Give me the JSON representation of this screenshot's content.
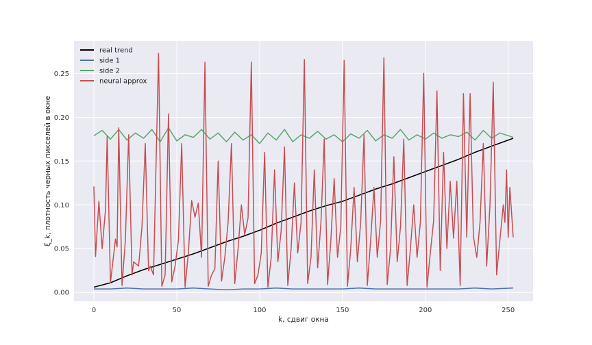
{
  "chart_data": {
    "type": "line",
    "xlabel": "k, сдвиг окна",
    "ylabel": "ξ_k, плотность черных пикселей в окне",
    "xlim": [
      -12,
      265
    ],
    "ylim": [
      -0.01,
      0.287
    ],
    "xticks": [
      0,
      50,
      100,
      150,
      200,
      250
    ],
    "yticks": [
      0.0,
      0.05,
      0.1,
      0.15,
      0.2,
      0.25
    ],
    "xtick_labels": [
      "0",
      "50",
      "100",
      "150",
      "200",
      "250"
    ],
    "ytick_labels": [
      "0.00",
      "0.05",
      "0.10",
      "0.15",
      "0.20",
      "0.25"
    ],
    "grid": true,
    "legend_position": "top-left",
    "series": [
      {
        "name": "real trend",
        "color": "#000000",
        "x": [
          0,
          10,
          20,
          30,
          40,
          50,
          60,
          70,
          80,
          90,
          100,
          110,
          120,
          130,
          140,
          150,
          160,
          170,
          180,
          190,
          200,
          210,
          220,
          230,
          240,
          253
        ],
        "y": [
          0.006,
          0.011,
          0.019,
          0.026,
          0.032,
          0.038,
          0.044,
          0.051,
          0.058,
          0.064,
          0.071,
          0.079,
          0.086,
          0.093,
          0.099,
          0.104,
          0.111,
          0.118,
          0.124,
          0.131,
          0.138,
          0.145,
          0.152,
          0.16,
          0.167,
          0.176
        ]
      },
      {
        "name": "side 1",
        "color": "#4c72b0",
        "x": [
          0,
          10,
          20,
          30,
          40,
          50,
          60,
          70,
          80,
          90,
          100,
          110,
          120,
          130,
          140,
          150,
          160,
          170,
          180,
          190,
          200,
          210,
          220,
          230,
          240,
          253
        ],
        "y": [
          0.004,
          0.004,
          0.005,
          0.004,
          0.004,
          0.004,
          0.005,
          0.004,
          0.003,
          0.004,
          0.004,
          0.005,
          0.004,
          0.004,
          0.004,
          0.004,
          0.005,
          0.004,
          0.004,
          0.004,
          0.004,
          0.004,
          0.004,
          0.005,
          0.004,
          0.005
        ]
      },
      {
        "name": "side 2",
        "color": "#55a868",
        "x": [
          0,
          5,
          10,
          15,
          20,
          25,
          30,
          35,
          40,
          45,
          50,
          55,
          60,
          65,
          70,
          75,
          80,
          85,
          90,
          95,
          100,
          105,
          110,
          115,
          120,
          125,
          130,
          135,
          140,
          145,
          150,
          155,
          160,
          165,
          170,
          175,
          180,
          185,
          190,
          195,
          200,
          205,
          210,
          215,
          220,
          225,
          230,
          235,
          240,
          245,
          250,
          253
        ],
        "y": [
          0.179,
          0.185,
          0.175,
          0.186,
          0.174,
          0.182,
          0.176,
          0.186,
          0.172,
          0.188,
          0.173,
          0.18,
          0.177,
          0.186,
          0.175,
          0.182,
          0.172,
          0.183,
          0.174,
          0.18,
          0.17,
          0.182,
          0.174,
          0.186,
          0.172,
          0.18,
          0.176,
          0.184,
          0.175,
          0.18,
          0.172,
          0.181,
          0.176,
          0.185,
          0.173,
          0.18,
          0.176,
          0.186,
          0.174,
          0.18,
          0.175,
          0.182,
          0.176,
          0.18,
          0.178,
          0.183,
          0.174,
          0.185,
          0.176,
          0.182,
          0.179,
          0.177
        ]
      },
      {
        "name": "neural approx",
        "color": "#c44e52",
        "x": [
          0,
          1,
          3,
          5,
          7,
          8,
          10,
          13,
          14,
          15,
          17,
          19,
          21,
          23,
          24,
          27,
          29,
          31,
          33,
          34,
          36,
          39,
          41,
          43,
          45,
          47,
          49,
          51,
          53,
          55,
          57,
          59,
          61,
          63,
          65,
          67,
          69,
          71,
          73,
          75,
          77,
          79,
          81,
          83,
          85,
          87,
          89,
          91,
          93,
          95,
          97,
          99,
          101,
          103,
          105,
          107,
          109,
          111,
          113,
          115,
          117,
          119,
          121,
          123,
          125,
          127,
          129,
          131,
          133,
          135,
          137,
          139,
          141,
          143,
          145,
          147,
          149,
          151,
          153,
          155,
          157,
          159,
          161,
          163,
          165,
          167,
          169,
          171,
          173,
          175,
          177,
          179,
          181,
          183,
          185,
          187,
          189,
          191,
          193,
          195,
          197,
          199,
          201,
          203,
          205,
          207,
          209,
          211,
          213,
          215,
          217,
          219,
          221,
          223,
          225,
          227,
          229,
          231,
          233,
          235,
          237,
          239,
          241,
          243,
          245,
          247,
          248,
          249,
          250,
          251,
          253
        ],
        "y": [
          0.121,
          0.041,
          0.104,
          0.05,
          0.095,
          0.178,
          0.011,
          0.061,
          0.052,
          0.188,
          0.008,
          0.06,
          0.18,
          0.02,
          0.035,
          0.03,
          0.075,
          0.17,
          0.025,
          0.03,
          0.02,
          0.273,
          0.007,
          0.02,
          0.204,
          0.012,
          0.03,
          0.06,
          0.17,
          0.006,
          0.045,
          0.105,
          0.086,
          0.102,
          0.04,
          0.263,
          0.007,
          0.02,
          0.027,
          0.15,
          0.013,
          0.04,
          0.08,
          0.17,
          0.01,
          0.05,
          0.1,
          0.066,
          0.085,
          0.263,
          0.01,
          0.02,
          0.045,
          0.16,
          0.006,
          0.04,
          0.14,
          0.035,
          0.07,
          0.166,
          0.008,
          0.05,
          0.125,
          0.045,
          0.08,
          0.266,
          0.01,
          0.04,
          0.14,
          0.028,
          0.08,
          0.175,
          0.009,
          0.06,
          0.13,
          0.04,
          0.075,
          0.265,
          0.007,
          0.05,
          0.12,
          0.035,
          0.08,
          0.18,
          0.008,
          0.06,
          0.12,
          0.04,
          0.082,
          0.268,
          0.009,
          0.05,
          0.155,
          0.035,
          0.075,
          0.175,
          0.008,
          0.05,
          0.1,
          0.04,
          0.08,
          0.25,
          0.006,
          0.045,
          0.082,
          0.23,
          0.025,
          0.16,
          0.05,
          0.127,
          0.062,
          0.127,
          0.008,
          0.227,
          0.063,
          0.227,
          0.064,
          0.04,
          0.08,
          0.17,
          0.03,
          0.1,
          0.24,
          0.02,
          0.06,
          0.1,
          0.08,
          0.14,
          0.063,
          0.12,
          0.063
        ]
      }
    ]
  }
}
